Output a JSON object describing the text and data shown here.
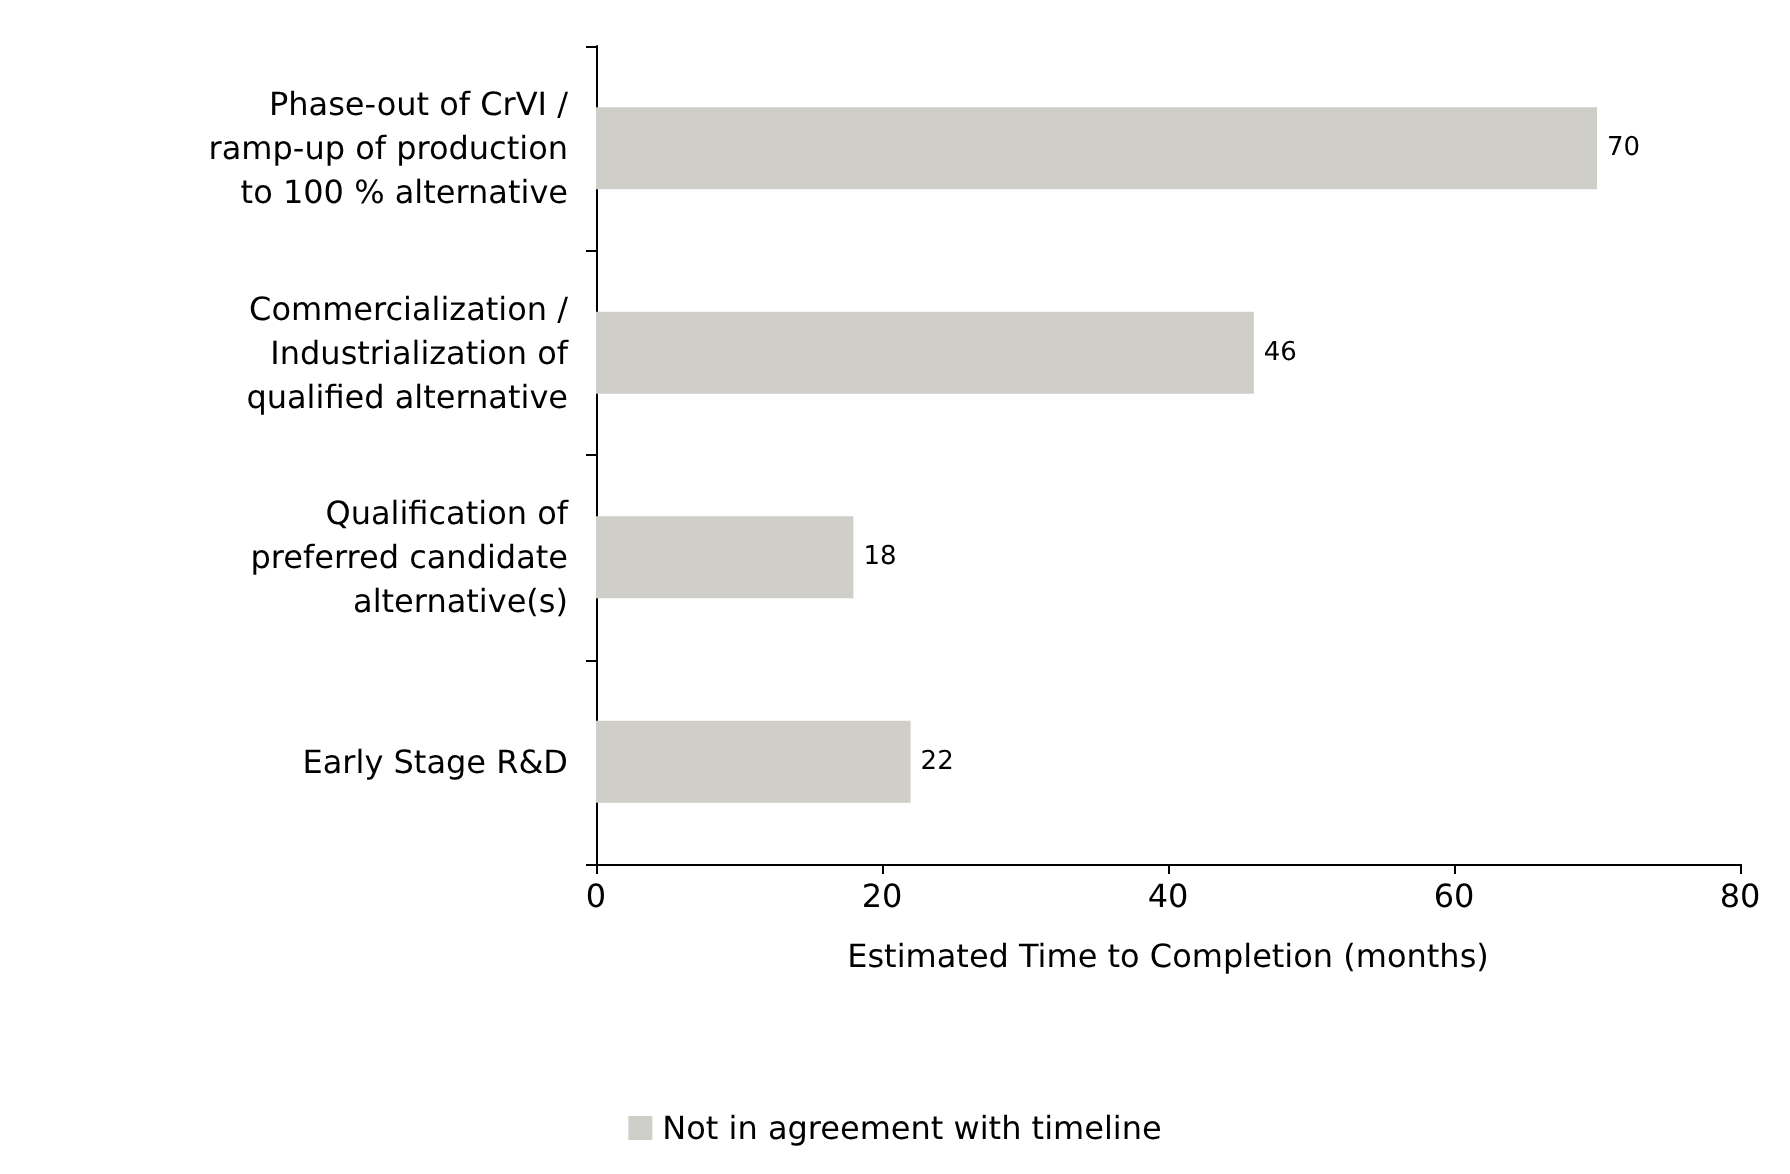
{
  "chart_data": {
    "type": "bar",
    "orientation": "horizontal",
    "categories": [
      "Phase-out of CrVI /\nramp-up of production\nto 100 % alternative",
      "Commercialization /\nIndustrialization of\nqualified alternative",
      "Qualification of\npreferred candidate\nalternative(s)",
      "Early Stage R&D"
    ],
    "series": [
      {
        "name": "Not in agreement with timeline",
        "color": "#d0cec9",
        "values": [
          70,
          46,
          18,
          22
        ]
      }
    ],
    "xlim": [
      0,
      80
    ],
    "xticks": [
      0,
      20,
      40,
      60,
      80
    ],
    "xlabel": "Estimated Time to Completion (months)",
    "data_labels": true,
    "grid": false,
    "legend": "bottom"
  }
}
